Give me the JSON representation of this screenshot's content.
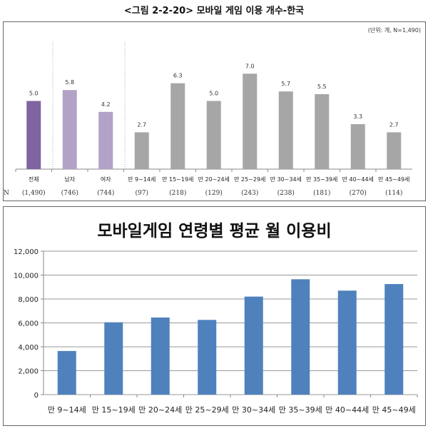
{
  "figure_title": "<그림 2-2-20> 모바일 게임 이용 개수-한국",
  "chart_data": [
    {
      "type": "bar",
      "title": "<그림 2-2-20> 모바일 게임 이용 개수-한국",
      "unit_note": "(단위: 개, N=1,490)",
      "categories": [
        "전체",
        "남자",
        "여자",
        "만 9~14세",
        "만 15~19세",
        "만 20~24세",
        "만 25~29세",
        "만 30~34세",
        "만 35~39세",
        "만 40~44세",
        "만 45~49세"
      ],
      "values": [
        5.0,
        5.8,
        4.2,
        2.7,
        6.3,
        5.0,
        7.0,
        5.7,
        5.5,
        3.3,
        2.7
      ],
      "value_labels": [
        "5.0",
        "5.8",
        "4.2",
        "2.7",
        "6.3",
        "5.0",
        "7.0",
        "5.7",
        "5.5",
        "3.3",
        "2.7"
      ],
      "n_label": "N",
      "n_values": [
        "(1,490)",
        "(746)",
        "(744)",
        "(97)",
        "(218)",
        "(129)",
        "(243)",
        "(238)",
        "(181)",
        "(270)",
        "(114)"
      ],
      "colors": [
        "#8064a2",
        "#b3a2c7",
        "#b3a2c7",
        "#a6a6a6",
        "#a6a6a6",
        "#a6a6a6",
        "#a6a6a6",
        "#a6a6a6",
        "#a6a6a6",
        "#a6a6a6",
        "#a6a6a6"
      ],
      "ylim": [
        0,
        7.5
      ],
      "grid": false
    },
    {
      "type": "bar",
      "title": "모바일게임 연령별 평균 월 이용비",
      "categories": [
        "만 9~14세",
        "만 15~19세",
        "만 20~24세",
        "만 25~29세",
        "만 30~34세",
        "만 35~39세",
        "만 40~44세",
        "만 45~49세"
      ],
      "values": [
        3650,
        6050,
        6450,
        6250,
        8200,
        9650,
        8700,
        9250
      ],
      "yticks": [
        "0",
        "2,000",
        "4,000",
        "6,000",
        "8,000",
        "10,000",
        "12,000"
      ],
      "ylim": [
        0,
        12000
      ],
      "color": "#4f81bd",
      "grid": true,
      "legend": "none"
    }
  ]
}
